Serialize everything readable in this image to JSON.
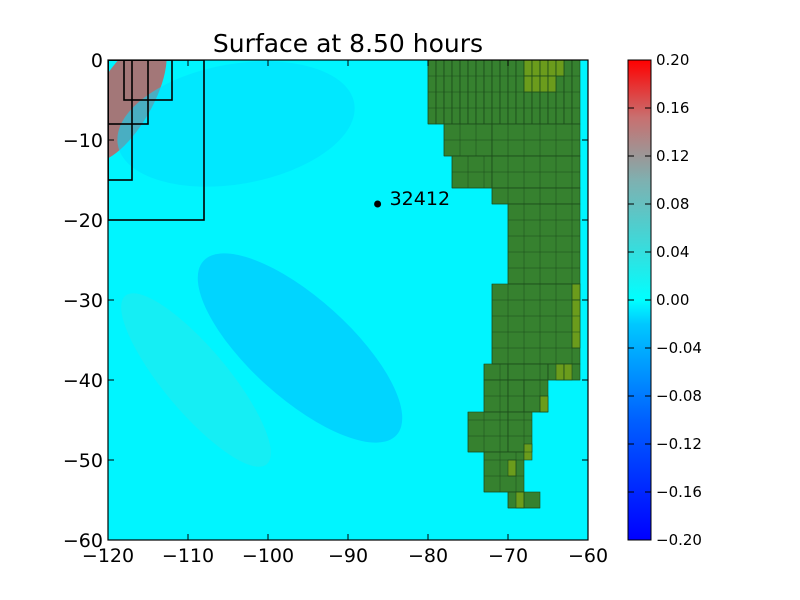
{
  "chart_data": {
    "type": "heatmap",
    "title": "Surface at 8.50 hours",
    "xlabel": "",
    "ylabel": "",
    "xlim": [
      -120,
      -60
    ],
    "ylim": [
      -60,
      0
    ],
    "x_ticks": [
      -120,
      -110,
      -100,
      -90,
      -80,
      -70,
      -60
    ],
    "x_tick_labels": [
      "−120",
      "−110",
      "−100",
      "−90",
      "−80",
      "−70",
      "−60"
    ],
    "y_ticks": [
      0,
      -10,
      -20,
      -30,
      -40,
      -50,
      -60
    ],
    "y_tick_labels": [
      "0",
      "−10",
      "−20",
      "−30",
      "−40",
      "−50",
      "−60"
    ],
    "grid": false,
    "colorbar": {
      "vmin": -0.2,
      "vmax": 0.2,
      "ticks": [
        0.2,
        0.16,
        0.12,
        0.08,
        0.04,
        0.0,
        -0.04,
        -0.08,
        -0.12,
        -0.16,
        -0.2
      ],
      "tick_labels": [
        "0.20",
        "0.16",
        "0.12",
        "0.08",
        "0.04",
        "0.00",
        "−0.04",
        "−0.08",
        "−0.12",
        "−0.16",
        "−0.20"
      ],
      "colors": [
        "#0000ff",
        "#00c8ff",
        "#00ffff",
        "#7fb0b0",
        "#ff0000"
      ]
    },
    "ocean_color": "#00f5ff",
    "land_color": "#36812f",
    "land_high_color": "#6b9c1c",
    "land_grid_color": "#1b4a1b",
    "gauge": {
      "name": "32412",
      "x": -86.3,
      "y": -18.0
    },
    "refinement_patches": [
      {
        "x": [
          -120,
          -108
        ],
        "y": [
          -20,
          0
        ]
      },
      {
        "x": [
          -120,
          -117
        ],
        "y": [
          -15,
          0
        ]
      },
      {
        "x": [
          -120,
          -115
        ],
        "y": [
          -8,
          0
        ]
      },
      {
        "x": [
          -118,
          -112
        ],
        "y": [
          -5,
          0
        ]
      }
    ],
    "land_cells": [
      [
        -80,
        -79,
        -8,
        0
      ],
      [
        -79,
        -78,
        -8,
        0
      ],
      [
        -78,
        -77,
        -8,
        0
      ],
      [
        -77,
        -76,
        -8,
        0
      ],
      [
        -76,
        -75,
        -8,
        0
      ],
      [
        -75,
        -74,
        -8,
        0
      ],
      [
        -74,
        -73,
        -8,
        0
      ],
      [
        -73,
        -72,
        -8,
        0
      ],
      [
        -72,
        -71,
        -8,
        0
      ],
      [
        -71,
        -70,
        -8,
        0
      ],
      [
        -70,
        -69,
        -8,
        0
      ],
      [
        -69,
        -68,
        -8,
        0
      ],
      [
        -68,
        -67,
        -8,
        0
      ],
      [
        -67,
        -66,
        -8,
        0
      ],
      [
        -66,
        -65,
        -8,
        0
      ],
      [
        -65,
        -64,
        -8,
        0
      ],
      [
        -64,
        -63,
        -8,
        0
      ],
      [
        -63,
        -62,
        -8,
        0
      ],
      [
        -62,
        -61,
        -8,
        0
      ],
      [
        -78,
        -72,
        -12,
        -8
      ],
      [
        -72,
        -61,
        -12,
        -8
      ],
      [
        -77,
        -72,
        -16,
        -12
      ],
      [
        -72,
        -61,
        -16,
        -12
      ],
      [
        -72,
        -61,
        -18,
        -16
      ],
      [
        -70,
        -61,
        -28,
        -18
      ],
      [
        -72,
        -61,
        -38,
        -28
      ],
      [
        -73,
        -70,
        -40,
        -38
      ],
      [
        -70,
        -65,
        -40,
        -38
      ],
      [
        -65,
        -61,
        -40,
        -38
      ],
      [
        -73,
        -70,
        -44,
        -40
      ],
      [
        -70,
        -68,
        -44,
        -40
      ],
      [
        -68,
        -65,
        -44,
        -40
      ],
      [
        -75,
        -70,
        -49,
        -44
      ],
      [
        -70,
        -67,
        -49,
        -44
      ],
      [
        -73,
        -68,
        -54,
        -49
      ],
      [
        -70,
        -66,
        -56,
        -54
      ]
    ],
    "land_high_cells": [
      [
        -68,
        -67,
        -2,
        0
      ],
      [
        -67,
        -66,
        -2,
        0
      ],
      [
        -66,
        -65,
        -2,
        0
      ],
      [
        -65,
        -64,
        -2,
        0
      ],
      [
        -64,
        -63,
        -2,
        0
      ],
      [
        -68,
        -67,
        -4,
        -2
      ],
      [
        -67,
        -66,
        -4,
        -2
      ],
      [
        -66,
        -65,
        -4,
        -2
      ],
      [
        -65,
        -64,
        -4,
        -2
      ],
      [
        -62,
        -61,
        -30,
        -28
      ],
      [
        -62,
        -61,
        -36,
        -30
      ],
      [
        -64,
        -63,
        -40,
        -38
      ],
      [
        -63,
        -62,
        -40,
        -38
      ],
      [
        -66,
        -65,
        -44,
        -42
      ],
      [
        -68,
        -67,
        -50,
        -48
      ],
      [
        -70,
        -69,
        -52,
        -50
      ],
      [
        -69,
        -68,
        -56,
        -54
      ]
    ],
    "wave_field": [
      {
        "type": "crest",
        "x": -118.0,
        "y": -5.0,
        "value": 0.12
      },
      {
        "type": "trough",
        "x": -104.0,
        "y": -8.0,
        "value": -0.03
      },
      {
        "type": "trough",
        "x": -96.0,
        "y": -36.0,
        "value": -0.04
      },
      {
        "type": "crest",
        "x": -109.0,
        "y": -40.0,
        "value": 0.02
      }
    ]
  }
}
